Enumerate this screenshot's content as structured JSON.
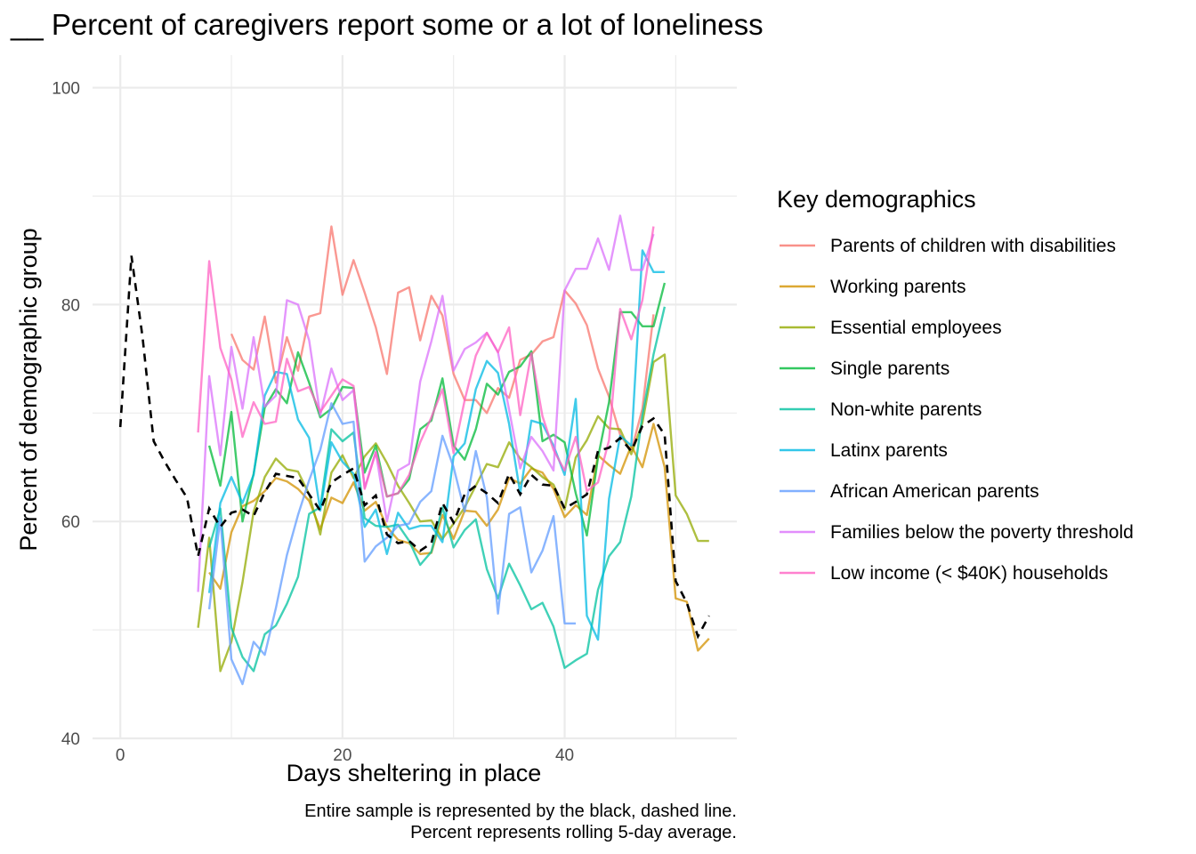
{
  "chart_data": {
    "type": "line",
    "title": "__ Percent of caregivers report some or a lot of loneliness",
    "xlabel": "Days sheltering in place",
    "ylabel": "Percent of demographic group",
    "xlim": [
      -2.5,
      55.5
    ],
    "ylim": [
      40,
      103
    ],
    "xticks": [
      "0",
      "20",
      "40"
    ],
    "yticks": [
      "40",
      "60",
      "80",
      "100"
    ],
    "grid": true,
    "legend": {
      "title": "Key demographics",
      "position": "right"
    },
    "caption": [
      "Entire sample is represented by the black, dashed line.",
      "Percent represents rolling 5-day average."
    ],
    "overall": {
      "style": "black dashed",
      "x": [
        0,
        1,
        2,
        3,
        4,
        5,
        6,
        7,
        8,
        9,
        10,
        11,
        12,
        13,
        14,
        15,
        16,
        17,
        18,
        19,
        20,
        21,
        22,
        23,
        24,
        25,
        26,
        27,
        28,
        29,
        30,
        31,
        32,
        33,
        34,
        35,
        36,
        37,
        38,
        39,
        40,
        41,
        42,
        43,
        44,
        45,
        46,
        47,
        48,
        49,
        50,
        51,
        52,
        53
      ],
      "values": [
        68.7,
        84.5,
        77.0,
        67.4,
        65.5,
        63.8,
        62.2,
        56.8,
        61.2,
        59.5,
        60.8,
        61.1,
        60.5,
        62.7,
        64.4,
        64.2,
        64.0,
        62.5,
        61.0,
        63.6,
        64.3,
        64.9,
        61.5,
        62.4,
        58.8,
        58.0,
        58.2,
        57.3,
        58.0,
        61.7,
        59.9,
        62.5,
        63.3,
        62.6,
        61.7,
        64.4,
        62.5,
        64.3,
        63.4,
        63.3,
        61.2,
        61.8,
        62.5,
        66.5,
        66.8,
        67.7,
        66.5,
        68.8,
        69.5,
        68.0,
        54.5,
        52.5,
        49.4,
        51.3
      ]
    },
    "series": [
      {
        "name": "Parents of children with disabilities",
        "color": "#F8766D",
        "x": [
          10,
          11,
          12,
          13,
          14,
          15,
          16,
          17,
          18,
          19,
          20,
          21,
          22,
          23,
          24,
          25,
          26,
          27,
          28,
          29,
          30,
          31,
          32,
          33,
          34,
          35,
          36,
          37,
          38,
          39,
          40,
          41,
          42,
          43,
          44,
          45,
          46,
          47,
          48
        ],
        "values": [
          77.3,
          74.9,
          74.0,
          78.9,
          72.8,
          77.0,
          73.9,
          78.9,
          79.2,
          87.2,
          80.9,
          84.1,
          81.1,
          77.9,
          73.6,
          81.1,
          81.6,
          76.7,
          80.8,
          79.0,
          73.6,
          71.2,
          71.2,
          70.0,
          72.3,
          71.4,
          74.9,
          75.4,
          76.6,
          77.0,
          81.3,
          80.1,
          78.1,
          74.1,
          71.5,
          68.0,
          66.5,
          70.4,
          79.1
        ]
      },
      {
        "name": "Working parents",
        "color": "#D39200",
        "x": [
          8,
          9,
          10,
          11,
          12,
          13,
          14,
          15,
          16,
          17,
          18,
          19,
          20,
          21,
          22,
          23,
          24,
          25,
          26,
          27,
          28,
          29,
          30,
          31,
          32,
          33,
          34,
          35,
          36,
          37,
          38,
          39,
          40,
          41,
          42,
          43,
          44,
          45,
          46,
          47,
          48,
          49,
          50,
          51,
          52,
          53
        ],
        "values": [
          55.3,
          53.8,
          59.0,
          61.4,
          61.9,
          62.8,
          64.0,
          63.7,
          63.0,
          61.9,
          59.3,
          62.2,
          61.7,
          63.6,
          61.0,
          61.8,
          59.5,
          58.3,
          58.0,
          57.0,
          57.1,
          60.6,
          58.4,
          61.0,
          60.9,
          59.6,
          61.1,
          64.0,
          63.5,
          64.9,
          64.5,
          63.0,
          60.4,
          61.5,
          60.6,
          66.1,
          65.2,
          64.4,
          67.0,
          65.0,
          69.0,
          65.0,
          52.9,
          52.6,
          48.1,
          49.2
        ]
      },
      {
        "name": "Essential employees",
        "color": "#93AA00",
        "x": [
          7,
          8,
          9,
          10,
          11,
          12,
          13,
          14,
          15,
          16,
          17,
          18,
          19,
          20,
          21,
          22,
          23,
          24,
          25,
          26,
          27,
          28,
          29,
          30,
          31,
          32,
          33,
          34,
          35,
          36,
          37,
          38,
          39,
          40,
          41,
          42,
          43,
          44,
          45,
          46,
          47,
          48,
          49,
          50,
          51,
          52,
          53
        ],
        "values": [
          50.2,
          58.5,
          46.2,
          48.9,
          54.4,
          60.9,
          64.1,
          65.8,
          64.8,
          64.6,
          62.5,
          58.8,
          64.5,
          66.1,
          64.0,
          66.0,
          67.2,
          65.4,
          63.3,
          61.7,
          60.0,
          60.1,
          58.4,
          59.8,
          61.3,
          63.3,
          65.3,
          65.0,
          67.3,
          65.8,
          65.0,
          64.1,
          63.4,
          61.1,
          65.9,
          67.5,
          69.7,
          68.6,
          68.5,
          66.2,
          69.1,
          74.7,
          75.4,
          62.4,
          60.7,
          58.2,
          58.2
        ]
      },
      {
        "name": "Single parents",
        "color": "#00BA38",
        "x": [
          8,
          9,
          10,
          11,
          12,
          13,
          14,
          15,
          16,
          17,
          18,
          19,
          20,
          21,
          22,
          23,
          24,
          25,
          26,
          27,
          28,
          29,
          30,
          31,
          32,
          33,
          34,
          35,
          36,
          37,
          38,
          39,
          40,
          41,
          42,
          43,
          44,
          45,
          46,
          47,
          48,
          49
        ],
        "values": [
          67.0,
          63.3,
          70.1,
          60.0,
          64.4,
          70.5,
          72.2,
          70.9,
          75.6,
          72.8,
          69.6,
          70.4,
          72.4,
          72.3,
          64.5,
          67.0,
          62.3,
          62.6,
          63.9,
          68.5,
          69.3,
          73.2,
          67.0,
          65.7,
          68.5,
          72.7,
          71.7,
          73.8,
          74.3,
          75.7,
          67.4,
          68.0,
          67.3,
          62.6,
          58.7,
          65.9,
          71.0,
          79.3,
          79.3,
          78.0,
          78.0,
          82.0
        ]
      },
      {
        "name": "Non-white parents",
        "color": "#00C19F",
        "x": [
          8,
          9,
          10,
          11,
          12,
          13,
          14,
          15,
          16,
          17,
          18,
          19,
          20,
          21,
          22,
          23,
          24,
          25,
          26,
          27,
          28,
          29,
          30,
          31,
          32,
          33,
          34,
          35,
          36,
          37,
          38,
          39,
          40,
          41,
          42,
          43,
          44,
          45,
          46,
          47,
          48,
          49
        ],
        "values": [
          57.6,
          61.2,
          50.2,
          47.5,
          46.2,
          49.6,
          50.4,
          52.4,
          54.9,
          60.7,
          61.3,
          68.5,
          67.4,
          68.2,
          60.3,
          59.6,
          59.5,
          59.7,
          58.2,
          56.0,
          57.2,
          61.3,
          57.6,
          59.2,
          60.2,
          55.6,
          52.9,
          56.1,
          54.1,
          51.9,
          52.5,
          50.3,
          46.5,
          47.2,
          47.8,
          53.7,
          56.8,
          58.1,
          62.3,
          69.8,
          75.4,
          79.8
        ]
      },
      {
        "name": "Latinx parents",
        "color": "#00B9E3",
        "x": [
          8,
          9,
          10,
          11,
          12,
          13,
          14,
          15,
          16,
          17,
          18,
          19,
          20,
          21,
          22,
          23,
          24,
          25,
          26,
          27,
          28,
          29,
          30,
          31,
          32,
          33,
          34,
          35,
          36,
          37,
          38,
          39,
          40,
          41,
          42,
          43,
          44,
          45,
          46,
          47,
          48,
          49
        ],
        "values": [
          53.4,
          61.7,
          64.1,
          61.7,
          64.3,
          71.6,
          73.8,
          73.6,
          69.4,
          67.7,
          61.0,
          67.3,
          65.5,
          64.4,
          59.5,
          61.1,
          57.0,
          60.8,
          59.3,
          59.6,
          59.6,
          58.1,
          66.0,
          67.2,
          72.2,
          74.8,
          73.7,
          69.0,
          62.6,
          69.3,
          69.0,
          67.0,
          64.3,
          71.3,
          51.3,
          49.1,
          62.1,
          67.9,
          67.0,
          85.0,
          83.0,
          83.0
        ]
      },
      {
        "name": "African American parents",
        "color": "#619CFF",
        "x": [
          8,
          9,
          10,
          11,
          12,
          13,
          14,
          15,
          16,
          17,
          18,
          19,
          20,
          21,
          22,
          23,
          24,
          25,
          26,
          27,
          28,
          29,
          30,
          31,
          32,
          33,
          34,
          35,
          36,
          37,
          38,
          39,
          40,
          41
        ],
        "values": [
          51.9,
          60.3,
          47.3,
          45.0,
          48.9,
          47.7,
          52.0,
          56.9,
          60.6,
          63.8,
          66.6,
          70.9,
          69.0,
          69.2,
          56.3,
          57.7,
          58.5,
          59.6,
          59.8,
          61.8,
          62.8,
          67.9,
          65.0,
          60.9,
          66.5,
          62.2,
          51.5,
          60.7,
          61.3,
          55.3,
          57.3,
          60.5,
          50.6,
          50.6
        ]
      },
      {
        "name": "Families below the poverty threshold",
        "color": "#DB72FB",
        "x": [
          7,
          8,
          9,
          10,
          11,
          12,
          13,
          14,
          15,
          16,
          17,
          18,
          19,
          20,
          21,
          22,
          23,
          24,
          25,
          26,
          27,
          28,
          29,
          30,
          31,
          32,
          33,
          34,
          35,
          36,
          37,
          38,
          39,
          40,
          41,
          42,
          43,
          44,
          45,
          46,
          47,
          48
        ],
        "values": [
          53.5,
          73.4,
          66.1,
          76.1,
          70.4,
          77.0,
          70.6,
          71.6,
          80.4,
          80.0,
          76.7,
          69.8,
          74.1,
          71.2,
          72.1,
          63.1,
          66.4,
          60.0,
          64.7,
          65.3,
          72.9,
          76.6,
          80.8,
          73.9,
          75.9,
          76.5,
          77.4,
          75.6,
          70.3,
          64.9,
          67.8,
          66.5,
          64.7,
          81.3,
          83.3,
          83.3,
          86.1,
          83.2,
          88.2,
          83.2,
          83.2,
          86.5
        ]
      },
      {
        "name": "Low income (< $40K) households",
        "color": "#FF61C3",
        "x": [
          7,
          8,
          9,
          10,
          11,
          12,
          13,
          14,
          15,
          16,
          17,
          18,
          19,
          20,
          21,
          22,
          23,
          24,
          25,
          26,
          27,
          28,
          29,
          30,
          31,
          32,
          33,
          34,
          35,
          36,
          37,
          38,
          39,
          40,
          41,
          42,
          43,
          44,
          45,
          46,
          47,
          48
        ],
        "values": [
          68.2,
          84.0,
          76.0,
          73.1,
          67.8,
          71.0,
          69.0,
          69.2,
          75.0,
          72.0,
          72.4,
          70.1,
          71.6,
          73.1,
          72.5,
          63.0,
          66.4,
          62.3,
          62.6,
          64.3,
          67.3,
          69.6,
          72.2,
          66.3,
          71.2,
          75.3,
          77.4,
          75.6,
          77.9,
          69.8,
          75.5,
          69.7,
          66.6,
          64.7,
          67.8,
          62.8,
          63.6,
          67.5,
          79.6,
          76.8,
          80.4,
          87.2
        ]
      }
    ]
  }
}
